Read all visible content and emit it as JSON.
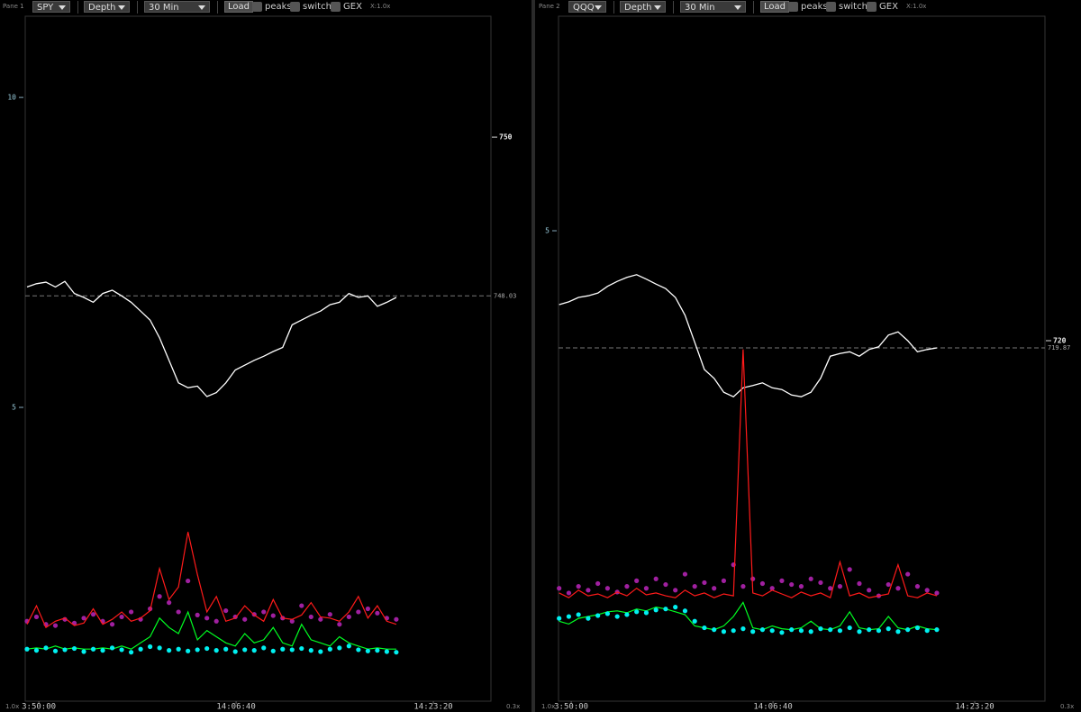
{
  "panes": [
    {
      "label": "Pane 1",
      "symbol": "SPY",
      "mode": "Depth",
      "interval": "30 Min",
      "load": "Load",
      "toggles": [
        "peaks",
        "switch",
        "GEX"
      ],
      "x_zoom": "X:1.0x",
      "left_scale": "1.0x",
      "right_scale": "0.3x",
      "chart_data": {
        "type": "line",
        "x": [
          49740,
          49788,
          49836,
          49884,
          49932,
          49980,
          50028,
          50076,
          50124,
          50172,
          50220,
          50268,
          50316,
          50364,
          50412,
          50460,
          50508,
          50556,
          50604,
          50652,
          50700,
          50748,
          50796,
          50844,
          50892,
          50940,
          50988,
          51036,
          51084,
          51132,
          51180,
          51228,
          51276,
          51324,
          51372,
          51420,
          51468,
          51516,
          51564,
          51612
        ],
        "xlim": [
          49731,
          52092
        ],
        "xticks": [
          {
            "value": 49800,
            "label": "3:50:00"
          },
          {
            "value": 50800,
            "label": "14:06:40"
          },
          {
            "value": 51800,
            "label": "14:23:20"
          }
        ],
        "ylim": [
          0.26,
          11.31
        ],
        "yticks": [
          5,
          10
        ],
        "y2lim": [
          743.0,
          751.5
        ],
        "y2ticks": [
          750
        ],
        "price_line": 748.03,
        "series": [
          {
            "color": "#ffffff",
            "style": "line",
            "axis": "y2",
            "values": [
              748.14,
              748.18,
              748.2,
              748.14,
              748.21,
              748.06,
              748.01,
              747.95,
              748.06,
              748.1,
              748.03,
              747.95,
              747.84,
              747.73,
              747.51,
              747.23,
              746.95,
              746.89,
              746.91,
              746.78,
              746.83,
              746.95,
              747.11,
              747.17,
              747.23,
              747.28,
              747.34,
              747.39,
              747.67,
              747.73,
              747.79,
              747.84,
              747.92,
              747.95,
              748.06,
              748.01,
              748.03,
              747.9,
              747.95,
              748.01
            ]
          },
          {
            "color": "#00ff22",
            "style": "line",
            "values": [
              1.1,
              1.12,
              1.1,
              1.15,
              1.1,
              1.12,
              1.1,
              1.1,
              1.12,
              1.1,
              1.15,
              1.1,
              1.2,
              1.3,
              1.6,
              1.45,
              1.35,
              1.7,
              1.25,
              1.4,
              1.3,
              1.2,
              1.15,
              1.35,
              1.2,
              1.25,
              1.45,
              1.2,
              1.15,
              1.5,
              1.25,
              1.2,
              1.15,
              1.3,
              1.2,
              1.15,
              1.1,
              1.12,
              1.1,
              1.1
            ]
          },
          {
            "color": "#a020a0",
            "style": "dots",
            "values": [
              1.55,
              1.62,
              1.5,
              1.48,
              1.58,
              1.52,
              1.6,
              1.66,
              1.55,
              1.5,
              1.62,
              1.7,
              1.58,
              1.75,
              1.95,
              1.85,
              1.7,
              2.2,
              1.65,
              1.6,
              1.55,
              1.72,
              1.62,
              1.58,
              1.66,
              1.7,
              1.64,
              1.6,
              1.55,
              1.8,
              1.62,
              1.58,
              1.66,
              1.5,
              1.62,
              1.7,
              1.75,
              1.68,
              1.6,
              1.58
            ]
          },
          {
            "color": "#ff1a1a",
            "style": "line",
            "values": [
              1.5,
              1.8,
              1.45,
              1.55,
              1.6,
              1.48,
              1.52,
              1.75,
              1.5,
              1.58,
              1.7,
              1.55,
              1.6,
              1.72,
              2.4,
              1.9,
              2.1,
              2.99,
              2.3,
              1.7,
              1.95,
              1.55,
              1.6,
              1.8,
              1.65,
              1.55,
              1.9,
              1.6,
              1.58,
              1.65,
              1.85,
              1.62,
              1.6,
              1.55,
              1.7,
              1.95,
              1.6,
              1.8,
              1.55,
              1.5
            ]
          },
          {
            "color": "#00f0f0",
            "style": "dots",
            "values": [
              1.1,
              1.08,
              1.12,
              1.07,
              1.09,
              1.11,
              1.06,
              1.1,
              1.08,
              1.12,
              1.09,
              1.05,
              1.1,
              1.14,
              1.12,
              1.08,
              1.1,
              1.07,
              1.09,
              1.11,
              1.08,
              1.1,
              1.06,
              1.09,
              1.08,
              1.12,
              1.07,
              1.1,
              1.09,
              1.11,
              1.08,
              1.06,
              1.1,
              1.12,
              1.15,
              1.09,
              1.07,
              1.08,
              1.06,
              1.05
            ]
          }
        ]
      }
    },
    {
      "label": "Pane 2",
      "symbol": "QQQ",
      "mode": "Depth",
      "interval": "30 Min",
      "load": "Load",
      "toggles": [
        "peaks",
        "switch",
        "GEX"
      ],
      "x_zoom": "X:1.0x",
      "left_scale": "1.0x",
      "right_scale": "0.3x",
      "chart_data": {
        "type": "line",
        "x": [
          49740,
          49788,
          49836,
          49884,
          49932,
          49980,
          50028,
          50076,
          50124,
          50172,
          50220,
          50268,
          50316,
          50364,
          50412,
          50460,
          50508,
          50556,
          50604,
          50652,
          50700,
          50748,
          50796,
          50844,
          50892,
          50940,
          50988,
          51036,
          51084,
          51132,
          51180,
          51228,
          51276,
          51324,
          51372,
          51420,
          51468,
          51516,
          51564,
          51612
        ],
        "xlim": [
          49737,
          52148
        ],
        "xticks": [
          {
            "value": 49800,
            "label": "3:50:00"
          },
          {
            "value": 50800,
            "label": "14:06:40"
          },
          {
            "value": 51800,
            "label": "14:23:20"
          }
        ],
        "ylim": [
          0,
          7.28
        ],
        "yticks": [
          5
        ],
        "y2lim": [
          713.5,
          725.85
        ],
        "y2ticks": [
          720
        ],
        "price_line": 719.87,
        "series": [
          {
            "color": "#ffffff",
            "style": "line",
            "axis": "y2",
            "values": [
              720.65,
              720.7,
              720.78,
              720.81,
              720.86,
              720.98,
              721.07,
              721.14,
              721.19,
              721.11,
              721.02,
              720.94,
              720.78,
              720.46,
              719.97,
              719.48,
              719.32,
              719.07,
              718.99,
              719.15,
              719.19,
              719.24,
              719.15,
              719.12,
              719.02,
              718.99,
              719.07,
              719.32,
              719.72,
              719.77,
              719.8,
              719.72,
              719.84,
              719.89,
              720.1,
              720.16,
              720.0,
              719.8,
              719.84,
              719.87
            ]
          },
          {
            "color": "#00ff22",
            "style": "line",
            "values": [
              0.85,
              0.82,
              0.88,
              0.9,
              0.92,
              0.95,
              0.96,
              0.94,
              0.98,
              0.96,
              1.0,
              0.98,
              0.95,
              0.92,
              0.8,
              0.78,
              0.76,
              0.8,
              0.9,
              1.05,
              0.78,
              0.76,
              0.8,
              0.77,
              0.76,
              0.78,
              0.85,
              0.77,
              0.76,
              0.8,
              0.95,
              0.78,
              0.76,
              0.77,
              0.9,
              0.78,
              0.76,
              0.8,
              0.77,
              0.76
            ]
          },
          {
            "color": "#a020a0",
            "style": "dots",
            "values": [
              1.2,
              1.15,
              1.22,
              1.18,
              1.25,
              1.2,
              1.16,
              1.22,
              1.28,
              1.2,
              1.3,
              1.24,
              1.18,
              1.35,
              1.22,
              1.26,
              1.2,
              1.28,
              1.45,
              1.22,
              1.3,
              1.25,
              1.2,
              1.28,
              1.24,
              1.22,
              1.3,
              1.26,
              1.2,
              1.22,
              1.4,
              1.25,
              1.18,
              1.12,
              1.24,
              1.2,
              1.35,
              1.22,
              1.18,
              1.15
            ]
          },
          {
            "color": "#ff1a1a",
            "style": "line",
            "values": [
              1.15,
              1.1,
              1.18,
              1.12,
              1.14,
              1.1,
              1.16,
              1.12,
              1.2,
              1.13,
              1.15,
              1.12,
              1.1,
              1.18,
              1.12,
              1.15,
              1.1,
              1.14,
              1.12,
              3.74,
              1.15,
              1.12,
              1.18,
              1.14,
              1.1,
              1.16,
              1.12,
              1.15,
              1.1,
              1.48,
              1.12,
              1.15,
              1.1,
              1.12,
              1.14,
              1.45,
              1.12,
              1.1,
              1.15,
              1.12
            ]
          },
          {
            "color": "#00f0f0",
            "style": "dots",
            "values": [
              0.88,
              0.9,
              0.92,
              0.88,
              0.91,
              0.93,
              0.9,
              0.92,
              0.95,
              0.94,
              0.97,
              0.98,
              1.0,
              0.96,
              0.85,
              0.78,
              0.76,
              0.74,
              0.75,
              0.77,
              0.74,
              0.76,
              0.75,
              0.73,
              0.76,
              0.75,
              0.74,
              0.77,
              0.76,
              0.75,
              0.78,
              0.74,
              0.76,
              0.75,
              0.77,
              0.74,
              0.76,
              0.78,
              0.75,
              0.76
            ]
          }
        ]
      }
    }
  ]
}
